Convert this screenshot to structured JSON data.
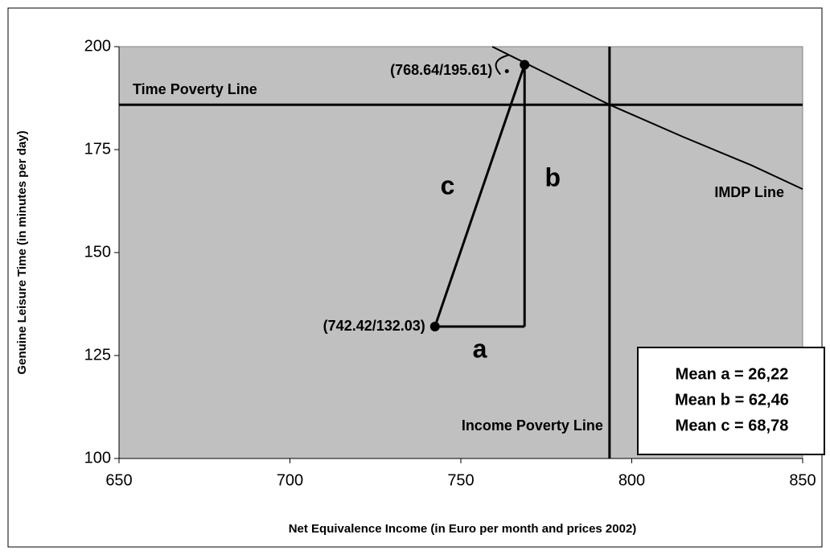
{
  "chart_data": {
    "type": "scatter",
    "xlabel": "Net Equivalence Income (in Euro per month and prices 2002)",
    "ylabel": "Genuine Leisure Time (in minutes per day)",
    "xlim": [
      650,
      850
    ],
    "ylim": [
      100,
      200
    ],
    "xticks": [
      650,
      700,
      750,
      800,
      850
    ],
    "yticks": [
      100,
      125,
      150,
      175,
      200
    ],
    "background": "#c0c0c0",
    "points": [
      {
        "x": 742.42,
        "y": 132.03,
        "label": "(742.42/132.03)"
      },
      {
        "x": 768.64,
        "y": 195.61,
        "label": "(768.64/195.61)"
      }
    ],
    "time_poverty_line": {
      "label": "Time Poverty Line",
      "value": 185.9
    },
    "income_poverty_line": {
      "label": "Income Poverty Line",
      "value": 793.5
    },
    "imdp_line": {
      "label": "IMDP Line",
      "x": [
        759.2,
        775,
        793.5,
        815,
        835,
        850
      ],
      "y": [
        200,
        193.5,
        185.9,
        178.1,
        171.2,
        165.4
      ]
    },
    "triangle_labels": [
      "a",
      "b",
      "c"
    ],
    "stats": [
      "Mean a = 26,22",
      "Mean b = 62,46",
      "Mean c = 68,78"
    ]
  }
}
